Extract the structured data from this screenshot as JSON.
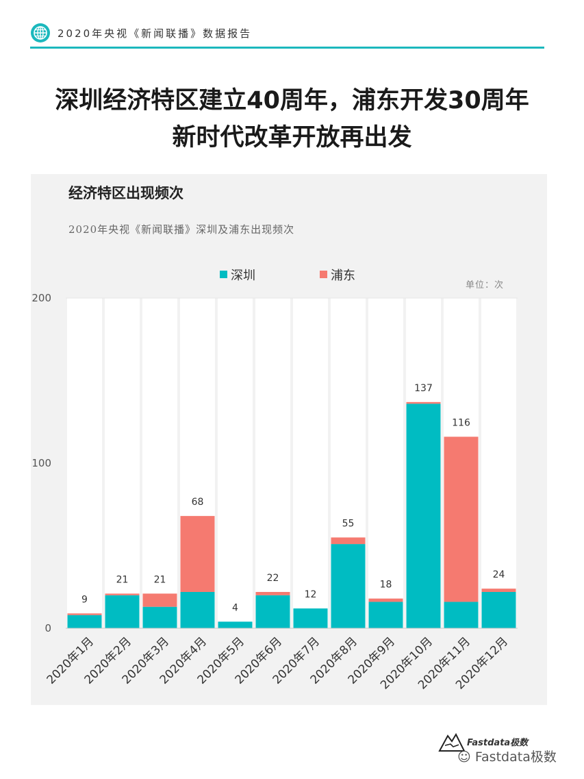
{
  "header": {
    "text": "2020年央视《新闻联播》数据报告"
  },
  "title": {
    "line1": "深圳经济特区建立40周年，浦东开发30周年",
    "line2": "新时代改革开放再出发"
  },
  "chart_title": "经济特区出现频次",
  "chart_subtitle": "2020年央视《新闻联播》深圳及浦东出现频次",
  "unit_label": "单位：次",
  "watermark": {
    "brand": "Fastdata极数",
    "account": "Fastdata极数",
    "channel_icon": "wechat-icon"
  },
  "colors": {
    "shenzhen": "#00bcc2",
    "pudong": "#f57a70",
    "accent": "#1bb8bd"
  },
  "chart_data": {
    "type": "bar",
    "stacked": true,
    "title": "经济特区出现频次",
    "subtitle": "2020年央视《新闻联播》深圳及浦东出现频次",
    "categories": [
      "2020年1月",
      "2020年2月",
      "2020年3月",
      "2020年4月",
      "2020年5月",
      "2020年6月",
      "2020年7月",
      "2020年8月",
      "2020年9月",
      "2020年10月",
      "2020年11月",
      "2020年12月"
    ],
    "series": [
      {
        "name": "深圳",
        "color": "#00bcc2",
        "values": [
          8,
          20,
          13,
          22,
          4,
          20,
          12,
          51,
          16,
          136,
          16,
          22
        ]
      },
      {
        "name": "浦东",
        "color": "#f57a70",
        "values": [
          1,
          1,
          8,
          46,
          0,
          2,
          0,
          4,
          2,
          1,
          100,
          2
        ]
      }
    ],
    "totals": [
      9,
      21,
      21,
      68,
      4,
      22,
      12,
      55,
      18,
      137,
      116,
      24
    ],
    "ylim": [
      0,
      200
    ],
    "yticks": [
      0,
      100,
      200
    ],
    "legend": "top",
    "grid": "vertical"
  }
}
